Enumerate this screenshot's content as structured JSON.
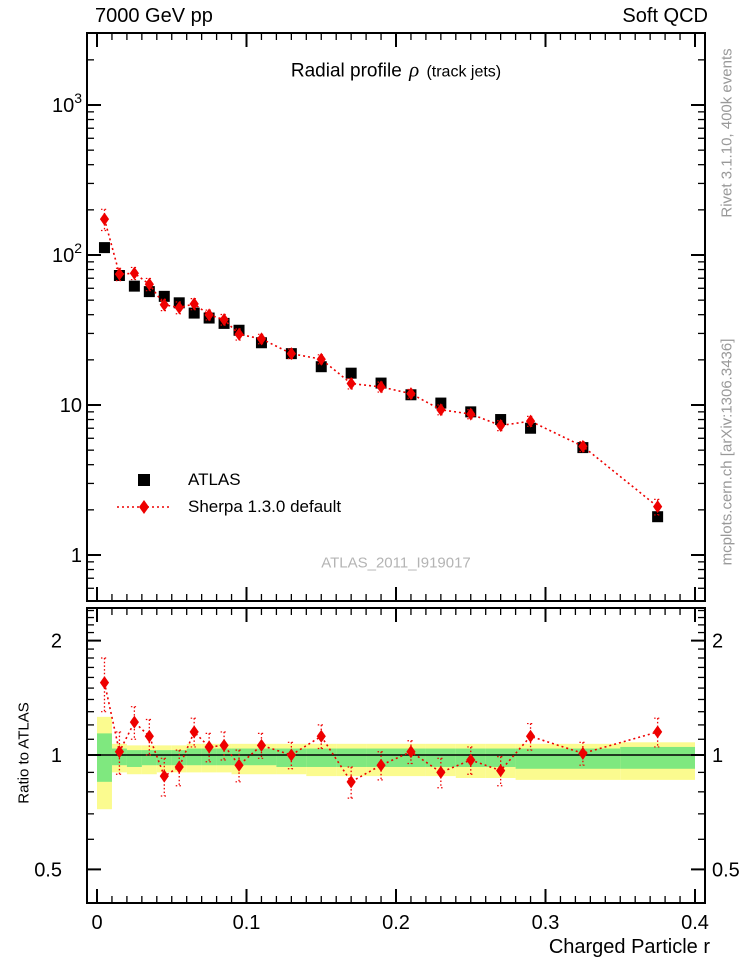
{
  "header": {
    "left": "7000 GeV pp",
    "right": "Soft QCD"
  },
  "title": {
    "prefix": "Radial profile",
    "symbol": "ρ",
    "suffix": "(track jets)"
  },
  "side_notes": {
    "rivet": "Rivet 3.1.10,  400k events",
    "mcplots": "mcplots.cern.ch [arXiv:1306.3436]"
  },
  "watermark": "ATLAS_2011_I919017",
  "legend": [
    {
      "label": "ATLAS",
      "marker": "black-square"
    },
    {
      "label": "Sherpa 1.3.0 default",
      "marker": "red-diamond-dotted-line"
    }
  ],
  "colors": {
    "atlas": "#000000",
    "sherpa": "#ee0000",
    "band_yellow": "#fbfb8f",
    "band_green": "#7fe87f",
    "note_gray": "#999999",
    "watermark_gray": "#b4b4b4"
  },
  "chart_data": [
    {
      "type": "scatter",
      "title": "Radial profile ρ (track jets)",
      "xlabel": "Charged Particle r",
      "ylabel": "",
      "yscale": "log",
      "xlim": [
        -0.0067,
        0.4067
      ],
      "ylim": [
        0.49,
        3020
      ],
      "xticks": [
        0,
        0.1,
        0.2,
        0.3,
        0.4
      ],
      "yticks": [
        1,
        10,
        100,
        1000
      ],
      "grid": false,
      "legend_position": "center-left",
      "x": [
        0.005,
        0.015,
        0.025,
        0.035,
        0.045,
        0.055,
        0.065,
        0.075,
        0.085,
        0.095,
        0.11,
        0.13,
        0.15,
        0.17,
        0.19,
        0.21,
        0.23,
        0.25,
        0.27,
        0.29,
        0.325,
        0.375
      ],
      "bin_edges": [
        0,
        0.01,
        0.02,
        0.03,
        0.04,
        0.05,
        0.06,
        0.07,
        0.08,
        0.09,
        0.1,
        0.12,
        0.14,
        0.16,
        0.18,
        0.2,
        0.22,
        0.24,
        0.26,
        0.28,
        0.3,
        0.35,
        0.4
      ],
      "series": [
        {
          "name": "ATLAS",
          "marker": "square",
          "color": "#000000",
          "values": [
            112,
            73,
            62,
            57,
            53,
            48,
            41,
            38,
            35,
            31.5,
            26,
            22,
            18,
            16.3,
            14,
            11.7,
            10.3,
            9,
            8,
            7,
            5.2,
            1.8
          ]
        },
        {
          "name": "Sherpa 1.3.0 default",
          "marker": "diamond",
          "color": "#ee0000",
          "line": "dotted",
          "values": [
            173.6,
            74.5,
            75.6,
            63.8,
            46.6,
            44.6,
            47.2,
            39.9,
            37.1,
            29.6,
            27.6,
            22,
            20.2,
            13.9,
            13.2,
            11.9,
            9.3,
            8.7,
            7.3,
            7.8,
            5.3,
            2.1
          ],
          "errors": [
            28,
            7,
            7,
            6,
            4,
            4,
            4,
            3,
            3,
            2.5,
            2,
            1.6,
            1.4,
            1.1,
            1,
            0.8,
            0.7,
            0.6,
            0.55,
            0.6,
            0.4,
            0.25
          ]
        }
      ]
    },
    {
      "type": "scatter",
      "title": "",
      "xlabel": "Charged Particle r",
      "ylabel": "Ratio to ATLAS",
      "yscale": "log",
      "xlim": [
        -0.0067,
        0.4067
      ],
      "ylim": [
        0.41,
        2.44
      ],
      "xticks": [
        0,
        0.1,
        0.2,
        0.3,
        0.4
      ],
      "yticks": [
        0.5,
        1,
        2
      ],
      "reference_line": 1,
      "x": [
        0.005,
        0.015,
        0.025,
        0.035,
        0.045,
        0.055,
        0.065,
        0.075,
        0.085,
        0.095,
        0.11,
        0.13,
        0.15,
        0.17,
        0.19,
        0.21,
        0.23,
        0.25,
        0.27,
        0.29,
        0.325,
        0.375
      ],
      "values": [
        1.55,
        1.02,
        1.22,
        1.12,
        0.88,
        0.93,
        1.15,
        1.05,
        1.06,
        0.94,
        1.06,
        1.0,
        1.12,
        0.85,
        0.94,
        1.02,
        0.9,
        0.97,
        0.91,
        1.12,
        1.01,
        1.15
      ],
      "errors": [
        0.25,
        0.13,
        0.12,
        0.12,
        0.1,
        0.1,
        0.1,
        0.09,
        0.09,
        0.09,
        0.08,
        0.08,
        0.08,
        0.08,
        0.08,
        0.07,
        0.08,
        0.08,
        0.08,
        0.09,
        0.07,
        0.1
      ],
      "band_green": [
        [
          0.85,
          1.14
        ],
        [
          0.94,
          1.04
        ],
        [
          0.93,
          1.03
        ],
        [
          0.94,
          1.03
        ],
        [
          0.94,
          1.03
        ],
        [
          0.94,
          1.03
        ],
        [
          0.94,
          1.04
        ],
        [
          0.94,
          1.04
        ],
        [
          0.94,
          1.04
        ],
        [
          0.94,
          1.04
        ],
        [
          0.94,
          1.04
        ],
        [
          0.93,
          1.04
        ],
        [
          0.93,
          1.04
        ],
        [
          0.93,
          1.04
        ],
        [
          0.93,
          1.04
        ],
        [
          0.93,
          1.04
        ],
        [
          0.93,
          1.04
        ],
        [
          0.93,
          1.04
        ],
        [
          0.93,
          1.04
        ],
        [
          0.92,
          1.04
        ],
        [
          0.92,
          1.04
        ],
        [
          0.92,
          1.05
        ]
      ],
      "band_yellow": [
        [
          0.72,
          1.26
        ],
        [
          0.9,
          1.07
        ],
        [
          0.89,
          1.06
        ],
        [
          0.89,
          1.06
        ],
        [
          0.9,
          1.06
        ],
        [
          0.9,
          1.06
        ],
        [
          0.9,
          1.07
        ],
        [
          0.9,
          1.07
        ],
        [
          0.9,
          1.07
        ],
        [
          0.89,
          1.07
        ],
        [
          0.89,
          1.07
        ],
        [
          0.89,
          1.07
        ],
        [
          0.88,
          1.07
        ],
        [
          0.88,
          1.07
        ],
        [
          0.88,
          1.07
        ],
        [
          0.88,
          1.07
        ],
        [
          0.88,
          1.07
        ],
        [
          0.87,
          1.07
        ],
        [
          0.87,
          1.07
        ],
        [
          0.86,
          1.07
        ],
        [
          0.86,
          1.07
        ],
        [
          0.86,
          1.08
        ]
      ]
    }
  ]
}
